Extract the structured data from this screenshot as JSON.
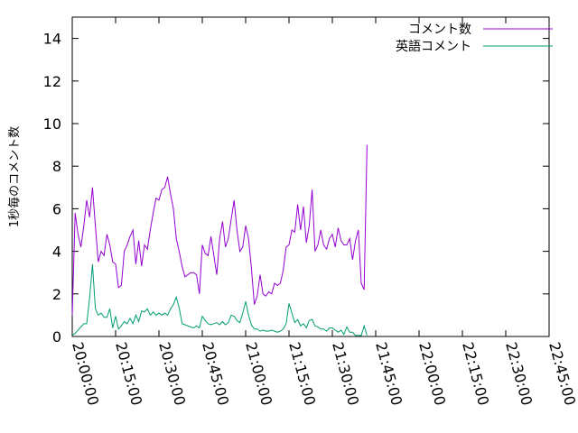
{
  "chart_data": {
    "type": "line",
    "ylabel": "1秒毎のコメント数",
    "xlabel": "",
    "title": "",
    "ylim": [
      0,
      15
    ],
    "yticks": [
      0,
      2,
      4,
      6,
      8,
      10,
      12,
      14
    ],
    "xlim": [
      "20:00:00",
      "22:45:00"
    ],
    "xticks": [
      "20:00:00",
      "20:15:00",
      "20:30:00",
      "20:45:00",
      "21:00:00",
      "21:15:00",
      "21:30:00",
      "21:45:00",
      "22:00:00",
      "22:15:00",
      "22:30:00",
      "22:45:00"
    ],
    "legend_position": "top-right",
    "grid": false,
    "series": [
      {
        "name": "コメント数",
        "color": "#9400d3",
        "points": [
          [
            "20:00:00",
            1.0
          ],
          [
            "20:01:00",
            5.8
          ],
          [
            "20:02:00",
            4.8
          ],
          [
            "20:03:00",
            4.2
          ],
          [
            "20:04:00",
            5.2
          ],
          [
            "20:05:00",
            6.4
          ],
          [
            "20:06:00",
            5.6
          ],
          [
            "20:07:00",
            7.0
          ],
          [
            "20:08:00",
            5.2
          ],
          [
            "20:09:00",
            3.5
          ],
          [
            "20:10:00",
            4.0
          ],
          [
            "20:11:00",
            3.8
          ],
          [
            "20:12:00",
            4.8
          ],
          [
            "20:13:00",
            4.3
          ],
          [
            "20:14:00",
            3.5
          ],
          [
            "20:15:00",
            3.4
          ],
          [
            "20:16:00",
            2.3
          ],
          [
            "20:17:00",
            2.4
          ],
          [
            "20:18:00",
            4.0
          ],
          [
            "20:19:00",
            4.3
          ],
          [
            "20:20:00",
            4.7
          ],
          [
            "20:21:00",
            5.0
          ],
          [
            "20:22:00",
            3.4
          ],
          [
            "20:23:00",
            4.5
          ],
          [
            "20:24:00",
            3.3
          ],
          [
            "20:25:00",
            4.3
          ],
          [
            "20:26:00",
            4.1
          ],
          [
            "20:27:00",
            5.0
          ],
          [
            "20:28:00",
            5.8
          ],
          [
            "20:29:00",
            6.5
          ],
          [
            "20:30:00",
            6.4
          ],
          [
            "20:31:00",
            6.9
          ],
          [
            "20:32:00",
            7.0
          ],
          [
            "20:33:00",
            7.5
          ],
          [
            "20:34:00",
            6.7
          ],
          [
            "20:35:00",
            6.0
          ],
          [
            "20:36:00",
            4.6
          ],
          [
            "20:37:00",
            4.0
          ],
          [
            "20:38:00",
            3.3
          ],
          [
            "20:39:00",
            2.8
          ],
          [
            "20:40:00",
            2.9
          ],
          [
            "20:41:00",
            3.0
          ],
          [
            "20:42:00",
            3.0
          ],
          [
            "20:43:00",
            2.9
          ],
          [
            "20:44:00",
            2.0
          ],
          [
            "20:45:00",
            4.3
          ],
          [
            "20:46:00",
            3.9
          ],
          [
            "20:47:00",
            3.8
          ],
          [
            "20:48:00",
            4.7
          ],
          [
            "20:49:00",
            3.8
          ],
          [
            "20:50:00",
            2.9
          ],
          [
            "20:51:00",
            4.6
          ],
          [
            "20:52:00",
            5.4
          ],
          [
            "20:53:00",
            4.2
          ],
          [
            "20:54:00",
            4.6
          ],
          [
            "20:55:00",
            5.5
          ],
          [
            "20:56:00",
            6.4
          ],
          [
            "20:57:00",
            5.0
          ],
          [
            "20:58:00",
            4.0
          ],
          [
            "20:59:00",
            4.2
          ],
          [
            "21:00:00",
            5.2
          ],
          [
            "21:01:00",
            4.6
          ],
          [
            "21:02:00",
            3.2
          ],
          [
            "21:03:00",
            1.5
          ],
          [
            "21:04:00",
            1.9
          ],
          [
            "21:05:00",
            2.9
          ],
          [
            "21:06:00",
            2.0
          ],
          [
            "21:07:00",
            1.9
          ],
          [
            "21:08:00",
            2.1
          ],
          [
            "21:09:00",
            2.0
          ],
          [
            "21:10:00",
            2.5
          ],
          [
            "21:11:00",
            2.4
          ],
          [
            "21:12:00",
            2.5
          ],
          [
            "21:13:00",
            3.1
          ],
          [
            "21:14:00",
            4.2
          ],
          [
            "21:15:00",
            4.3
          ],
          [
            "21:16:00",
            5.0
          ],
          [
            "21:17:00",
            4.9
          ],
          [
            "21:18:00",
            6.2
          ],
          [
            "21:19:00",
            5.0
          ],
          [
            "21:20:00",
            6.1
          ],
          [
            "21:21:00",
            4.4
          ],
          [
            "21:22:00",
            5.2
          ],
          [
            "21:23:00",
            6.9
          ],
          [
            "21:24:00",
            4.0
          ],
          [
            "21:25:00",
            4.3
          ],
          [
            "21:26:00",
            5.0
          ],
          [
            "21:27:00",
            4.3
          ],
          [
            "21:28:00",
            4.1
          ],
          [
            "21:29:00",
            4.6
          ],
          [
            "21:30:00",
            4.8
          ],
          [
            "21:31:00",
            4.2
          ],
          [
            "21:32:00",
            5.1
          ],
          [
            "21:33:00",
            4.5
          ],
          [
            "21:34:00",
            4.3
          ],
          [
            "21:35:00",
            4.3
          ],
          [
            "21:36:00",
            4.6
          ],
          [
            "21:37:00",
            3.6
          ],
          [
            "21:38:00",
            4.5
          ],
          [
            "21:39:00",
            5.0
          ],
          [
            "21:40:00",
            2.5
          ],
          [
            "21:41:00",
            2.2
          ],
          [
            "21:42:00",
            9.0
          ]
        ]
      },
      {
        "name": "英語コメント",
        "color": "#009e73",
        "points": [
          [
            "20:00:00",
            0.05
          ],
          [
            "20:01:00",
            0.15
          ],
          [
            "20:02:00",
            0.3
          ],
          [
            "20:03:00",
            0.45
          ],
          [
            "20:04:00",
            0.6
          ],
          [
            "20:05:00",
            0.6
          ],
          [
            "20:06:00",
            1.8
          ],
          [
            "20:07:00",
            3.4
          ],
          [
            "20:08:00",
            1.3
          ],
          [
            "20:09:00",
            1.0
          ],
          [
            "20:10:00",
            1.1
          ],
          [
            "20:11:00",
            0.9
          ],
          [
            "20:12:00",
            0.9
          ],
          [
            "20:13:00",
            1.3
          ],
          [
            "20:14:00",
            0.4
          ],
          [
            "20:15:00",
            0.95
          ],
          [
            "20:16:00",
            0.35
          ],
          [
            "20:17:00",
            0.5
          ],
          [
            "20:18:00",
            0.7
          ],
          [
            "20:19:00",
            0.6
          ],
          [
            "20:20:00",
            0.85
          ],
          [
            "20:21:00",
            0.6
          ],
          [
            "20:22:00",
            1.0
          ],
          [
            "20:23:00",
            0.7
          ],
          [
            "20:24:00",
            1.2
          ],
          [
            "20:25:00",
            1.15
          ],
          [
            "20:26:00",
            1.3
          ],
          [
            "20:27:00",
            1.0
          ],
          [
            "20:28:00",
            1.15
          ],
          [
            "20:29:00",
            1.0
          ],
          [
            "20:30:00",
            1.1
          ],
          [
            "20:31:00",
            1.0
          ],
          [
            "20:32:00",
            1.1
          ],
          [
            "20:33:00",
            1.0
          ],
          [
            "20:34:00",
            1.3
          ],
          [
            "20:35:00",
            1.5
          ],
          [
            "20:36:00",
            1.85
          ],
          [
            "20:37:00",
            1.35
          ],
          [
            "20:38:00",
            0.6
          ],
          [
            "20:39:00",
            0.55
          ],
          [
            "20:40:00",
            0.5
          ],
          [
            "20:41:00",
            0.45
          ],
          [
            "20:42:00",
            0.4
          ],
          [
            "20:43:00",
            0.5
          ],
          [
            "20:44:00",
            0.4
          ],
          [
            "20:45:00",
            0.95
          ],
          [
            "20:46:00",
            0.75
          ],
          [
            "20:47:00",
            0.6
          ],
          [
            "20:48:00",
            0.55
          ],
          [
            "20:49:00",
            0.6
          ],
          [
            "20:50:00",
            0.65
          ],
          [
            "20:51:00",
            0.55
          ],
          [
            "20:52:00",
            0.7
          ],
          [
            "20:53:00",
            0.55
          ],
          [
            "20:54:00",
            0.65
          ],
          [
            "20:55:00",
            1.0
          ],
          [
            "20:56:00",
            0.95
          ],
          [
            "20:57:00",
            0.75
          ],
          [
            "20:58:00",
            0.65
          ],
          [
            "20:59:00",
            1.1
          ],
          [
            "21:00:00",
            1.65
          ],
          [
            "21:01:00",
            1.0
          ],
          [
            "21:02:00",
            0.55
          ],
          [
            "21:03:00",
            0.35
          ],
          [
            "21:04:00",
            0.35
          ],
          [
            "21:05:00",
            0.25
          ],
          [
            "21:06:00",
            0.3
          ],
          [
            "21:07:00",
            0.25
          ],
          [
            "21:08:00",
            0.25
          ],
          [
            "21:09:00",
            0.3
          ],
          [
            "21:10:00",
            0.25
          ],
          [
            "21:11:00",
            0.2
          ],
          [
            "21:12:00",
            0.25
          ],
          [
            "21:13:00",
            0.35
          ],
          [
            "21:14:00",
            0.6
          ],
          [
            "21:15:00",
            1.55
          ],
          [
            "21:16:00",
            1.1
          ],
          [
            "21:17:00",
            0.65
          ],
          [
            "21:18:00",
            0.8
          ],
          [
            "21:19:00",
            0.5
          ],
          [
            "21:20:00",
            0.6
          ],
          [
            "21:21:00",
            0.4
          ],
          [
            "21:22:00",
            0.75
          ],
          [
            "21:23:00",
            0.8
          ],
          [
            "21:24:00",
            0.5
          ],
          [
            "21:25:00",
            0.45
          ],
          [
            "21:26:00",
            0.35
          ],
          [
            "21:27:00",
            0.35
          ],
          [
            "21:28:00",
            0.25
          ],
          [
            "21:29:00",
            0.4
          ],
          [
            "21:30:00",
            0.4
          ],
          [
            "21:31:00",
            0.3
          ],
          [
            "21:32:00",
            0.2
          ],
          [
            "21:33:00",
            0.3
          ],
          [
            "21:34:00",
            0.1
          ],
          [
            "21:35:00",
            0.45
          ],
          [
            "21:36:00",
            0.2
          ],
          [
            "21:37:00",
            0.2
          ],
          [
            "21:38:00",
            0.05
          ],
          [
            "21:39:00",
            0.05
          ],
          [
            "21:40:00",
            0.05
          ],
          [
            "21:41:00",
            0.5
          ],
          [
            "21:42:00",
            0.05
          ]
        ]
      }
    ]
  }
}
